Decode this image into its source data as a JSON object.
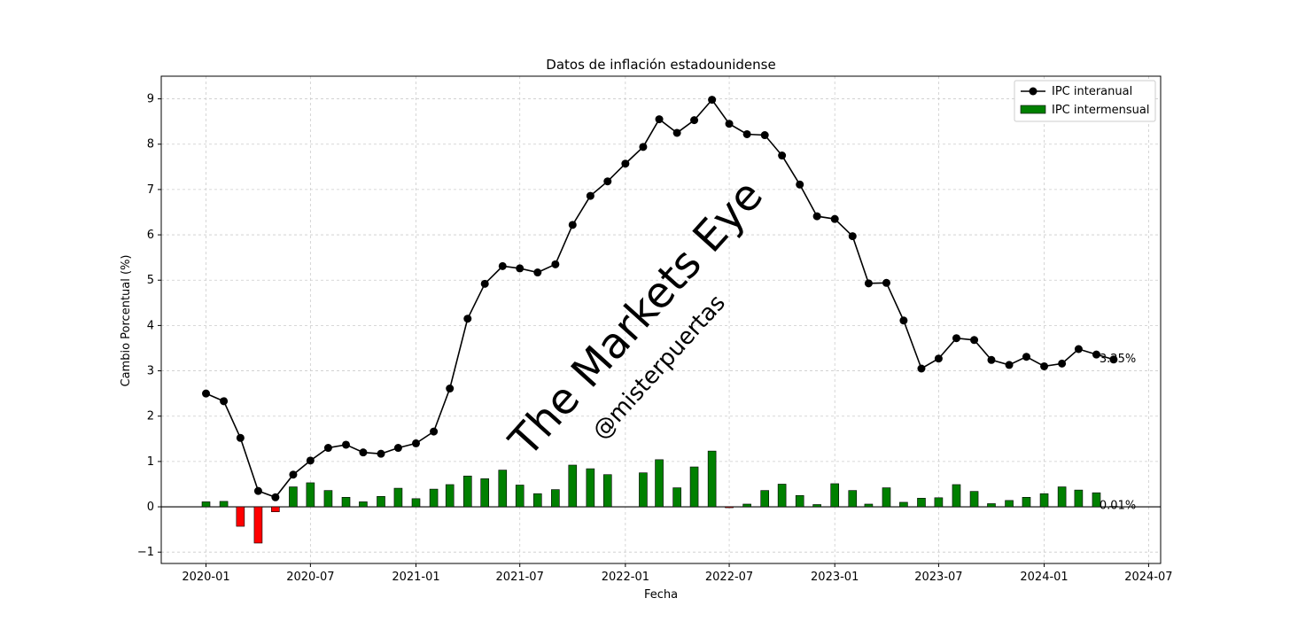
{
  "colors": {
    "yoy_line": "#000000",
    "mom_pos": "#008000",
    "mom_neg": "#ff0000",
    "grid": "#cccccc",
    "watermark": "#d9d9d9"
  },
  "watermark": {
    "main": "The Markets Eye",
    "sub": "@misterpuertas"
  },
  "chart_data": {
    "type": "bar+line",
    "title": "Datos de inflación estadounidense",
    "xlabel": "Fecha",
    "ylabel": "Cambio Porcentual (%)",
    "ylim": [
      -1.25,
      9.5
    ],
    "xlim": [
      "2019-10-15",
      "2024-07-22"
    ],
    "grid": true,
    "legend_position": "top-right",
    "yticks": [
      -1,
      0,
      1,
      2,
      3,
      4,
      5,
      6,
      7,
      8,
      9
    ],
    "yticks_labels": [
      "−1",
      "0",
      "1",
      "2",
      "3",
      "4",
      "5",
      "6",
      "7",
      "8",
      "9"
    ],
    "xticks": [
      "2020-01",
      "2020-07",
      "2021-01",
      "2021-07",
      "2022-01",
      "2022-07",
      "2023-01",
      "2023-07",
      "2024-01",
      "2024-07"
    ],
    "x": [
      "2020-01",
      "2020-02",
      "2020-03",
      "2020-04",
      "2020-05",
      "2020-06",
      "2020-07",
      "2020-08",
      "2020-09",
      "2020-10",
      "2020-11",
      "2020-12",
      "2021-01",
      "2021-02",
      "2021-03",
      "2021-04",
      "2021-05",
      "2021-06",
      "2021-07",
      "2021-08",
      "2021-09",
      "2021-10",
      "2021-11",
      "2021-12",
      "2022-01",
      "2022-02",
      "2022-03",
      "2022-04",
      "2022-05",
      "2022-06",
      "2022-07",
      "2022-08",
      "2022-09",
      "2022-10",
      "2022-11",
      "2022-12",
      "2023-01",
      "2023-02",
      "2023-03",
      "2023-04",
      "2023-05",
      "2023-06",
      "2023-07",
      "2023-08",
      "2023-09",
      "2023-10",
      "2023-11",
      "2023-12",
      "2024-01",
      "2024-02",
      "2024-03",
      "2024-04",
      "2024-05"
    ],
    "series": [
      {
        "name": "IPC interanual",
        "kind": "line",
        "values": [
          2.5,
          2.33,
          1.52,
          0.35,
          0.21,
          0.71,
          1.02,
          1.3,
          1.37,
          1.2,
          1.17,
          1.3,
          1.4,
          1.66,
          2.61,
          4.15,
          4.92,
          5.31,
          5.26,
          5.17,
          5.35,
          6.22,
          6.86,
          7.18,
          7.57,
          7.94,
          8.55,
          8.25,
          8.53,
          8.98,
          8.45,
          8.22,
          8.2,
          7.75,
          7.11,
          6.41,
          6.35,
          5.97,
          4.93,
          4.94,
          4.11,
          3.05,
          3.27,
          3.72,
          3.68,
          3.24,
          3.13,
          3.31,
          3.1,
          3.16,
          3.48,
          3.36,
          3.25
        ]
      },
      {
        "name": "IPC intermensual",
        "kind": "bar",
        "values": [
          0.11,
          0.12,
          -0.43,
          -0.8,
          -0.11,
          0.44,
          0.53,
          0.36,
          0.21,
          0.11,
          0.23,
          0.41,
          0.18,
          0.39,
          0.49,
          0.68,
          0.62,
          0.81,
          0.48,
          0.29,
          0.38,
          0.92,
          0.84,
          0.71,
          null,
          0.75,
          1.04,
          0.42,
          0.88,
          1.23,
          -0.02,
          0.06,
          0.36,
          0.5,
          0.25,
          0.05,
          0.51,
          0.36,
          0.06,
          0.42,
          0.1,
          0.19,
          0.2,
          0.49,
          0.34,
          0.07,
          0.14,
          0.21,
          0.29,
          0.44,
          0.37,
          0.31,
          0.01
        ]
      }
    ],
    "annotations": [
      {
        "text": "3.25%",
        "x": "2024-05",
        "y": 3.25
      },
      {
        "text": "0.01%",
        "x": "2024-05",
        "y": 0.01
      }
    ]
  }
}
